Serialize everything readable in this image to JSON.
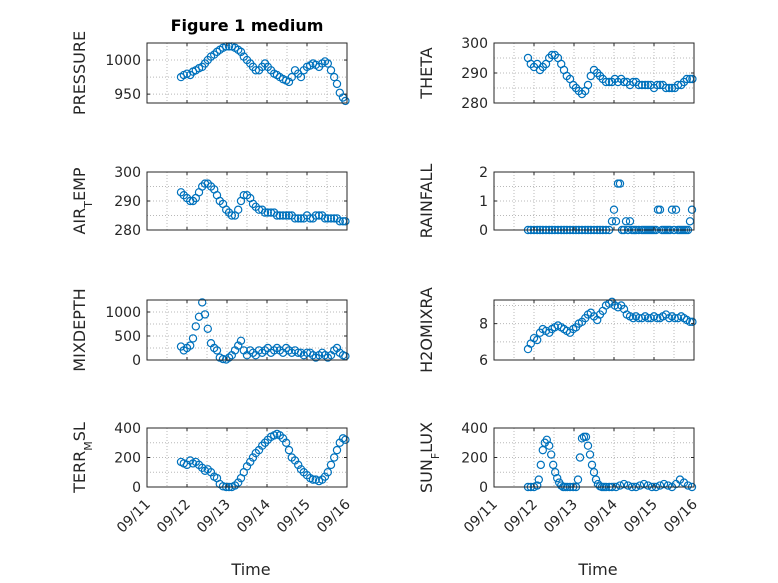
{
  "figure_title": "Figure 1 medium",
  "marker_color": "#0072BD",
  "x_label": "Time",
  "x_ticks": [
    "09/11",
    "09/12",
    "09/13",
    "09/14",
    "09/15",
    "09/16"
  ],
  "chart_data": [
    {
      "type": "scatter",
      "title": "Figure 1 medium",
      "ylabel": "PRESSURE",
      "xlim": [
        0,
        5
      ],
      "ylim": [
        937,
        1025
      ],
      "yticks": [
        950,
        1000
      ],
      "ytick_labels": [
        "950",
        "1000"
      ],
      "grid": true,
      "x": [
        0.85,
        0.92,
        1.0,
        1.08,
        1.15,
        1.22,
        1.3,
        1.38,
        1.45,
        1.52,
        1.6,
        1.68,
        1.75,
        1.82,
        1.9,
        1.98,
        2.05,
        2.12,
        2.2,
        2.28,
        2.35,
        2.42,
        2.5,
        2.58,
        2.65,
        2.72,
        2.8,
        2.88,
        2.95,
        3.02,
        3.1,
        3.18,
        3.25,
        3.32,
        3.4,
        3.48,
        3.55,
        3.62,
        3.7,
        3.78,
        3.85,
        3.92,
        4.0,
        4.08,
        4.15,
        4.22,
        4.3,
        4.38,
        4.45,
        4.52,
        4.6,
        4.68,
        4.75,
        4.82,
        4.9,
        4.96
      ],
      "y": [
        975,
        978,
        980,
        978,
        983,
        985,
        988,
        990,
        995,
        1000,
        1005,
        1008,
        1012,
        1015,
        1018,
        1020,
        1020,
        1020,
        1018,
        1015,
        1012,
        1005,
        1000,
        995,
        990,
        985,
        985,
        990,
        995,
        990,
        985,
        980,
        978,
        975,
        972,
        970,
        968,
        975,
        985,
        980,
        975,
        985,
        990,
        992,
        995,
        993,
        990,
        995,
        998,
        995,
        985,
        975,
        965,
        952,
        945,
        940
      ],
      "series_name": ""
    },
    {
      "type": "scatter",
      "ylabel": "THETA",
      "xlim": [
        0,
        5
      ],
      "ylim": [
        280,
        300
      ],
      "yticks": [
        280,
        290,
        300
      ],
      "ytick_labels": [
        "280",
        "290",
        "300"
      ],
      "grid": true,
      "x": [
        0.85,
        0.92,
        1.0,
        1.08,
        1.15,
        1.22,
        1.3,
        1.38,
        1.45,
        1.52,
        1.6,
        1.68,
        1.75,
        1.82,
        1.9,
        1.98,
        2.05,
        2.12,
        2.2,
        2.28,
        2.35,
        2.42,
        2.5,
        2.58,
        2.65,
        2.72,
        2.8,
        2.88,
        2.95,
        3.02,
        3.1,
        3.18,
        3.25,
        3.32,
        3.4,
        3.48,
        3.55,
        3.62,
        3.7,
        3.78,
        3.85,
        3.92,
        4.0,
        4.08,
        4.15,
        4.22,
        4.3,
        4.38,
        4.45,
        4.52,
        4.6,
        4.68,
        4.75,
        4.82,
        4.9,
        4.96
      ],
      "y": [
        295,
        293,
        292,
        293,
        291,
        292,
        293,
        295,
        296,
        296,
        295,
        293,
        291,
        289,
        288,
        286,
        285,
        284,
        283,
        284,
        286,
        289,
        291,
        290,
        289,
        288,
        287,
        287,
        287,
        288,
        287,
        288,
        287,
        287,
        286,
        287,
        287,
        286,
        286,
        286,
        286,
        286,
        285,
        286,
        286,
        286,
        285,
        285,
        285,
        285,
        286,
        286,
        287,
        288,
        288,
        288
      ]
    },
    {
      "type": "scatter",
      "ylabel": "AIR_TEMP",
      "xlim": [
        0,
        5
      ],
      "ylim": [
        280,
        300
      ],
      "yticks": [
        280,
        290,
        300
      ],
      "ytick_labels": [
        "280",
        "290",
        "300"
      ],
      "grid": true,
      "x": [
        0.85,
        0.92,
        1.0,
        1.08,
        1.15,
        1.22,
        1.3,
        1.38,
        1.45,
        1.52,
        1.6,
        1.68,
        1.75,
        1.82,
        1.9,
        1.98,
        2.05,
        2.12,
        2.2,
        2.28,
        2.35,
        2.42,
        2.5,
        2.58,
        2.65,
        2.72,
        2.8,
        2.88,
        2.95,
        3.02,
        3.1,
        3.18,
        3.25,
        3.32,
        3.4,
        3.48,
        3.55,
        3.62,
        3.7,
        3.78,
        3.85,
        3.92,
        4.0,
        4.08,
        4.15,
        4.22,
        4.3,
        4.38,
        4.45,
        4.52,
        4.6,
        4.68,
        4.75,
        4.82,
        4.9,
        4.96
      ],
      "y": [
        293,
        292,
        291,
        290,
        290,
        291,
        293,
        295,
        296,
        296,
        295,
        294,
        292,
        290,
        289,
        287,
        286,
        285,
        285,
        287,
        290,
        292,
        292,
        291,
        289,
        288,
        287,
        287,
        286,
        286,
        286,
        286,
        285,
        285,
        285,
        285,
        285,
        285,
        284,
        284,
        284,
        284,
        285,
        284,
        284,
        285,
        285,
        285,
        284,
        284,
        284,
        284,
        284,
        283,
        283,
        283
      ]
    },
    {
      "type": "scatter",
      "ylabel": "RAINFALL",
      "xlim": [
        0,
        5
      ],
      "ylim": [
        0,
        2
      ],
      "yticks": [
        0,
        1,
        2
      ],
      "ytick_labels": [
        "0",
        "1",
        "2"
      ],
      "grid": true,
      "x": [
        0.85,
        0.92,
        1.0,
        1.08,
        1.15,
        1.22,
        1.3,
        1.38,
        1.45,
        1.52,
        1.6,
        1.68,
        1.75,
        1.82,
        1.9,
        1.98,
        2.05,
        2.12,
        2.2,
        2.28,
        2.35,
        2.42,
        2.5,
        2.58,
        2.65,
        2.72,
        2.8,
        2.88,
        2.95,
        3.0,
        3.05,
        3.1,
        3.15,
        3.2,
        3.25,
        3.3,
        3.35,
        3.4,
        3.45,
        3.5,
        3.55,
        3.62,
        3.7,
        3.75,
        3.8,
        3.85,
        3.9,
        3.95,
        4.0,
        4.05,
        4.1,
        4.15,
        4.2,
        4.25,
        4.3,
        4.35,
        4.4,
        4.45,
        4.5,
        4.55,
        4.6,
        4.65,
        4.7,
        4.75,
        4.8,
        4.85,
        4.9,
        4.95
      ],
      "y": [
        0,
        0,
        0,
        0,
        0,
        0,
        0,
        0,
        0,
        0,
        0,
        0,
        0,
        0,
        0,
        0,
        0,
        0,
        0,
        0,
        0,
        0,
        0,
        0,
        0,
        0,
        0,
        0,
        0.3,
        0.7,
        0.3,
        1.6,
        1.6,
        0,
        0,
        0.3,
        0,
        0.3,
        0,
        0,
        0,
        0,
        0,
        0,
        0,
        0,
        0,
        0,
        0,
        0,
        0.7,
        0.7,
        0,
        0,
        0,
        0,
        0,
        0.7,
        0,
        0.7,
        0,
        0,
        0,
        0,
        0,
        0,
        0.3,
        0.7
      ]
    },
    {
      "type": "scatter",
      "ylabel": "MIXDEPTH",
      "xlim": [
        0,
        5
      ],
      "ylim": [
        0,
        1250
      ],
      "yticks": [
        0,
        500,
        1000
      ],
      "ytick_labels": [
        "0",
        "500",
        "1000"
      ],
      "grid": true,
      "x": [
        0.85,
        0.92,
        1.0,
        1.08,
        1.15,
        1.22,
        1.3,
        1.38,
        1.45,
        1.52,
        1.6,
        1.68,
        1.75,
        1.82,
        1.9,
        1.98,
        2.05,
        2.12,
        2.2,
        2.28,
        2.35,
        2.42,
        2.5,
        2.58,
        2.65,
        2.72,
        2.8,
        2.88,
        2.95,
        3.02,
        3.1,
        3.18,
        3.25,
        3.32,
        3.4,
        3.48,
        3.55,
        3.62,
        3.7,
        3.78,
        3.85,
        3.92,
        4.0,
        4.08,
        4.15,
        4.22,
        4.3,
        4.38,
        4.45,
        4.52,
        4.6,
        4.68,
        4.75,
        4.82,
        4.9,
        4.96
      ],
      "y": [
        280,
        200,
        250,
        300,
        450,
        700,
        900,
        1200,
        950,
        650,
        350,
        250,
        200,
        50,
        20,
        10,
        50,
        100,
        200,
        300,
        400,
        200,
        100,
        200,
        150,
        100,
        200,
        150,
        200,
        250,
        150,
        200,
        250,
        200,
        150,
        250,
        200,
        150,
        200,
        150,
        150,
        100,
        150,
        150,
        100,
        50,
        100,
        150,
        100,
        50,
        100,
        200,
        250,
        150,
        100,
        80
      ]
    },
    {
      "type": "scatter",
      "ylabel": "H2OMIXRA",
      "xlim": [
        0,
        5
      ],
      "ylim": [
        6,
        9.3
      ],
      "yticks": [
        6,
        8
      ],
      "ytick_labels": [
        "6",
        "8"
      ],
      "grid": true,
      "x": [
        0.85,
        0.92,
        1.0,
        1.08,
        1.15,
        1.22,
        1.3,
        1.38,
        1.45,
        1.52,
        1.6,
        1.68,
        1.75,
        1.82,
        1.9,
        1.98,
        2.05,
        2.12,
        2.2,
        2.28,
        2.35,
        2.42,
        2.5,
        2.58,
        2.65,
        2.72,
        2.8,
        2.88,
        2.95,
        3.02,
        3.1,
        3.18,
        3.25,
        3.32,
        3.4,
        3.48,
        3.55,
        3.62,
        3.7,
        3.78,
        3.85,
        3.92,
        4.0,
        4.08,
        4.15,
        4.22,
        4.3,
        4.38,
        4.45,
        4.52,
        4.6,
        4.68,
        4.75,
        4.82,
        4.9,
        4.96
      ],
      "y": [
        6.6,
        6.9,
        7.2,
        7.1,
        7.5,
        7.7,
        7.6,
        7.5,
        7.7,
        7.8,
        7.9,
        7.8,
        7.7,
        7.6,
        7.5,
        7.7,
        7.8,
        8.0,
        8.1,
        8.3,
        8.5,
        8.6,
        8.4,
        8.2,
        8.5,
        8.7,
        9.0,
        9.1,
        9.2,
        9.0,
        8.9,
        9.0,
        8.8,
        8.5,
        8.4,
        8.3,
        8.4,
        8.3,
        8.3,
        8.4,
        8.3,
        8.3,
        8.4,
        8.3,
        8.3,
        8.4,
        8.5,
        8.3,
        8.4,
        8.3,
        8.3,
        8.4,
        8.3,
        8.2,
        8.1,
        8.1
      ]
    },
    {
      "type": "scatter",
      "ylabel": "TERR_MSL",
      "xlim": [
        0,
        5
      ],
      "ylim": [
        0,
        400
      ],
      "yticks": [
        0,
        200,
        400
      ],
      "ytick_labels": [
        "0",
        "200",
        "400"
      ],
      "grid": true,
      "x": [
        0.85,
        0.92,
        1.0,
        1.08,
        1.15,
        1.22,
        1.3,
        1.38,
        1.45,
        1.52,
        1.6,
        1.68,
        1.75,
        1.82,
        1.9,
        1.98,
        2.05,
        2.12,
        2.2,
        2.28,
        2.35,
        2.42,
        2.5,
        2.58,
        2.65,
        2.72,
        2.8,
        2.88,
        2.95,
        3.02,
        3.1,
        3.18,
        3.25,
        3.32,
        3.4,
        3.48,
        3.55,
        3.62,
        3.7,
        3.78,
        3.85,
        3.92,
        4.0,
        4.08,
        4.15,
        4.22,
        4.3,
        4.38,
        4.45,
        4.52,
        4.6,
        4.68,
        4.75,
        4.82,
        4.9,
        4.96
      ],
      "y": [
        170,
        160,
        150,
        180,
        160,
        170,
        150,
        130,
        110,
        120,
        100,
        70,
        60,
        20,
        5,
        0,
        0,
        0,
        10,
        30,
        60,
        100,
        140,
        170,
        200,
        230,
        250,
        280,
        300,
        320,
        340,
        350,
        360,
        350,
        330,
        300,
        250,
        200,
        180,
        150,
        120,
        100,
        80,
        60,
        50,
        50,
        40,
        50,
        70,
        100,
        150,
        200,
        250,
        300,
        330,
        320
      ]
    },
    {
      "type": "scatter",
      "ylabel": "SUN_FLUX",
      "xlim": [
        0,
        5
      ],
      "ylim": [
        0,
        400
      ],
      "yticks": [
        0,
        200,
        400
      ],
      "ytick_labels": [
        "0",
        "200",
        "400"
      ],
      "grid": true,
      "x": [
        0.85,
        0.92,
        1.0,
        1.08,
        1.12,
        1.17,
        1.22,
        1.27,
        1.32,
        1.38,
        1.43,
        1.48,
        1.53,
        1.58,
        1.63,
        1.68,
        1.73,
        1.78,
        1.83,
        1.9,
        1.98,
        2.05,
        2.1,
        2.15,
        2.2,
        2.25,
        2.3,
        2.35,
        2.4,
        2.45,
        2.5,
        2.55,
        2.6,
        2.65,
        2.7,
        2.75,
        2.8,
        2.88,
        2.95,
        3.05,
        3.15,
        3.25,
        3.35,
        3.45,
        3.55,
        3.65,
        3.75,
        3.85,
        3.95,
        4.05,
        4.15,
        4.25,
        4.35,
        4.45,
        4.55,
        4.65,
        4.75,
        4.85,
        4.95
      ],
      "y": [
        0,
        0,
        0,
        10,
        50,
        150,
        250,
        300,
        320,
        280,
        220,
        150,
        100,
        60,
        30,
        10,
        0,
        0,
        0,
        0,
        0,
        0,
        50,
        200,
        330,
        340,
        340,
        280,
        220,
        150,
        100,
        50,
        20,
        5,
        0,
        0,
        0,
        0,
        0,
        0,
        10,
        20,
        10,
        0,
        0,
        10,
        20,
        10,
        0,
        0,
        10,
        20,
        10,
        0,
        20,
        50,
        30,
        10,
        0
      ]
    }
  ]
}
